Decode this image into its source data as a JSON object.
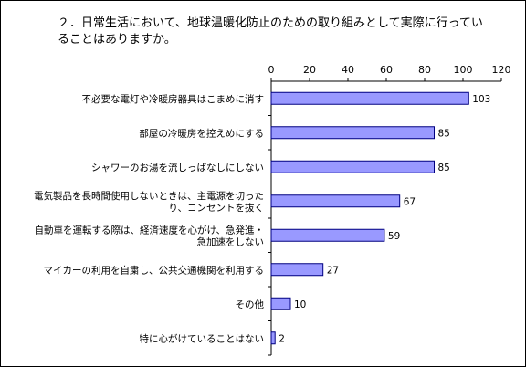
{
  "chart_data": {
    "type": "bar",
    "orientation": "horizontal",
    "title": "２．日常生活において、地球温暖化防止のための取り組みとして実際に行っていることはありますか。",
    "categories": [
      "不必要な電灯や冷暖房器具はこまめに消す",
      "部屋の冷暖房を控えめにする",
      "シャワーのお湯を流しっぱなしにしない",
      "電気製品を長時間使用しないときは、主電源を切ったり、コンセントを抜く",
      "自動車を運転する際は、経済速度を心がけ、急発進・急加速をしない",
      "マイカーの利用を自粛し、公共交通機関を利用する",
      "その他",
      "特に心がけていることはない"
    ],
    "category_lines": [
      [
        "不必要な電灯や冷暖房器具はこまめに消す"
      ],
      [
        "部屋の冷暖房を控えめにする"
      ],
      [
        "シャワーのお湯を流しっぱなしにしない"
      ],
      [
        "電気製品を長時間使用しないときは、主電源を切った",
        "り、コンセントを抜く"
      ],
      [
        "自動車を運転する際は、経済速度を心がけ、急発進・",
        "急加速をしない"
      ],
      [
        "マイカーの利用を自粛し、公共交通機関を利用する"
      ],
      [
        "その他"
      ],
      [
        "特に心がけていることはない"
      ]
    ],
    "values": [
      103,
      85,
      85,
      67,
      59,
      27,
      10,
      2
    ],
    "xlim": [
      0,
      120
    ],
    "xticks": [
      0,
      20,
      40,
      60,
      80,
      100,
      120
    ],
    "axis_position": "top",
    "grid": false,
    "legend": "none",
    "bar_color": "#9999ff",
    "bar_edge_color": "#000080"
  }
}
